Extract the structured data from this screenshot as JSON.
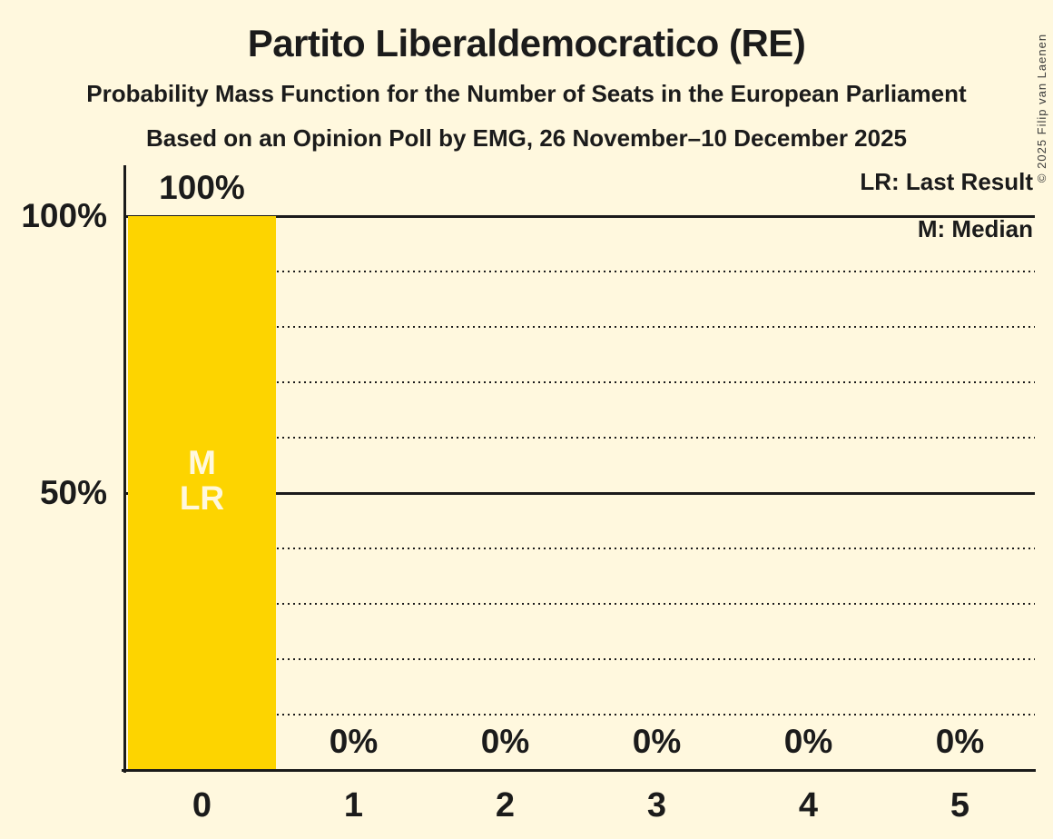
{
  "title": "Partito Liberaldemocratico (RE)",
  "subtitle": "Probability Mass Function for the Number of Seats in the European Parliament",
  "poll_line": "Based on an Opinion Poll by EMG, 26 November–10 December 2025",
  "copyright": "© 2025 Filip van Laenen",
  "legend": {
    "last_result": "LR: Last Result",
    "median": "M: Median"
  },
  "y_axis": {
    "label_top": "100%",
    "label_mid": "50%"
  },
  "chart_data": {
    "type": "bar",
    "title": "Partito Liberaldemocratico (RE)",
    "categories": [
      "0",
      "1",
      "2",
      "3",
      "4",
      "5"
    ],
    "values": [
      100,
      0,
      0,
      0,
      0,
      0
    ],
    "value_labels": [
      "100%",
      "0%",
      "0%",
      "0%",
      "0%",
      "0%"
    ],
    "ylim": [
      0,
      100
    ],
    "ytick_labels": [
      "100%",
      "50%"
    ],
    "solid_gridlines_pct": [
      100,
      50
    ],
    "dotted_gridlines_pct": [
      90,
      80,
      70,
      60,
      40,
      30,
      20,
      10
    ],
    "legend_position": "top-right",
    "grid": "dotted-horizontal",
    "bar_color": "#FDD400",
    "background_color": "#FFF8DE",
    "text_color": "#1B1B1B",
    "annotations": {
      "median_label": "M",
      "last_result_label": "LR",
      "annotated_bar_category": "0"
    }
  }
}
